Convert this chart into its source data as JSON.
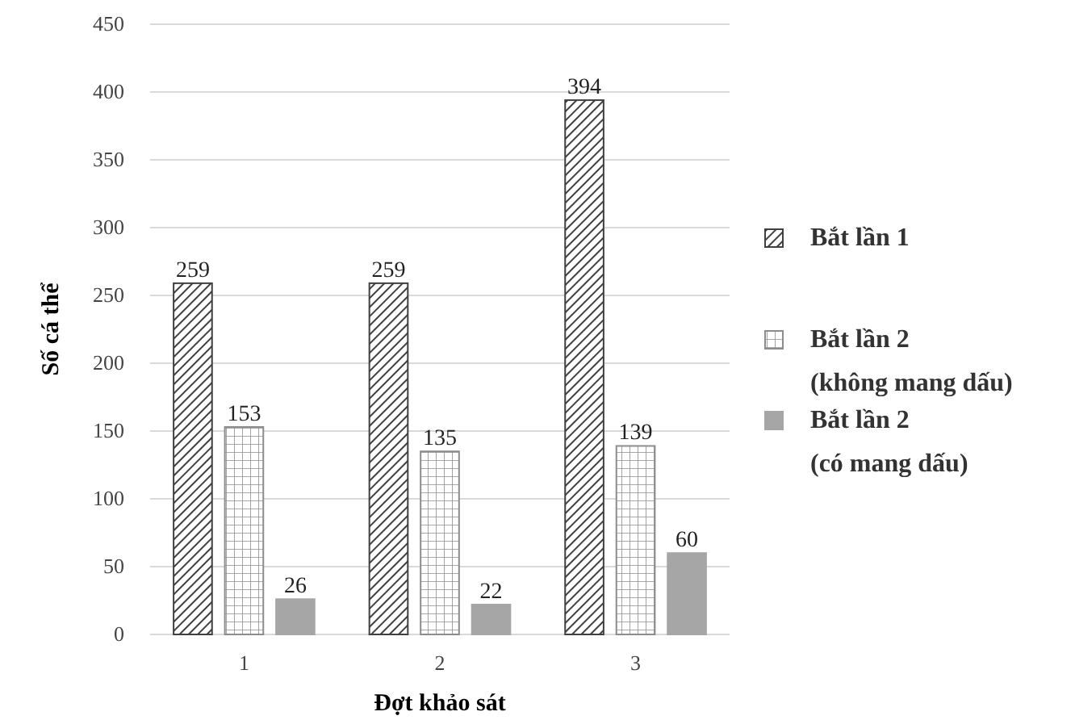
{
  "chart_data": {
    "type": "bar",
    "xlabel": "Đợt khảo sát",
    "ylabel": "Số cá thể",
    "categories": [
      "1",
      "2",
      "3"
    ],
    "series": [
      {
        "name": "Bắt lần 1",
        "color": "#404040",
        "values": [
          259,
          259,
          394
        ]
      },
      {
        "name": "Bắt lần 2 (không mang dấu)",
        "color": "#8c8c8c",
        "values": [
          153,
          135,
          139
        ]
      },
      {
        "name": "Bắt lần 2 (có mang dấu)",
        "color": "#a6a6a6",
        "values": [
          26,
          22,
          60
        ]
      }
    ],
    "ylim": [
      0,
      450
    ],
    "yticks": [
      0,
      50,
      100,
      150,
      200,
      250,
      300,
      350,
      400,
      450
    ],
    "grid": "y",
    "legend": "right",
    "data_labels": true
  }
}
